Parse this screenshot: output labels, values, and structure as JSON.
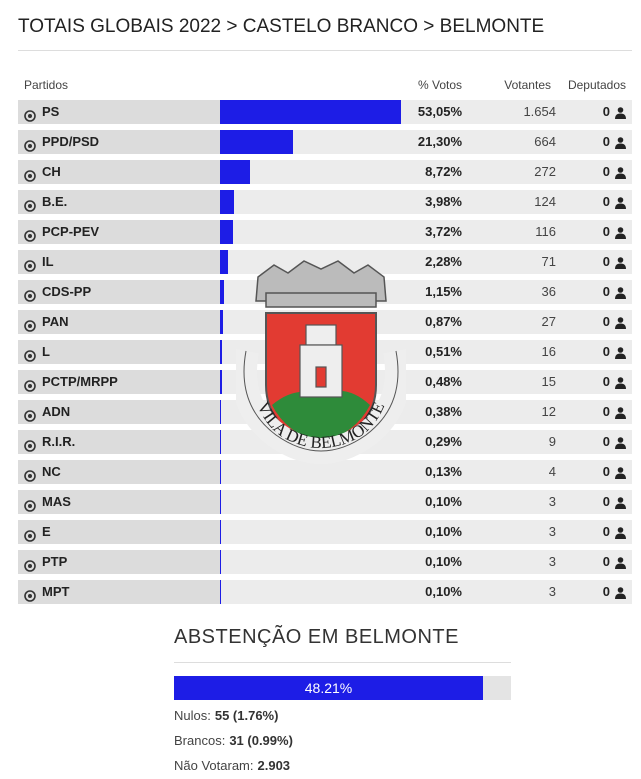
{
  "header": {
    "title": "TOTAIS GLOBAIS 2022 > CASTELO BRANCO > BELMONTE"
  },
  "table": {
    "columns": [
      "Partidos",
      "% Votos",
      "Votantes",
      "Deputados"
    ],
    "rows": [
      {
        "party": "PS",
        "percent": {
          "value": 53.05,
          "label": "53,05%"
        },
        "voters": "1.654",
        "deputies": "0"
      },
      {
        "party": "PPD/PSD",
        "percent": {
          "value": 21.3,
          "label": "21,30%"
        },
        "voters": "664",
        "deputies": "0"
      },
      {
        "party": "CH",
        "percent": {
          "value": 8.72,
          "label": "8,72%"
        },
        "voters": "272",
        "deputies": "0"
      },
      {
        "party": "B.E.",
        "percent": {
          "value": 3.98,
          "label": "3,98%"
        },
        "voters": "124",
        "deputies": "0"
      },
      {
        "party": "PCP-PEV",
        "percent": {
          "value": 3.72,
          "label": "3,72%"
        },
        "voters": "116",
        "deputies": "0"
      },
      {
        "party": "IL",
        "percent": {
          "value": 2.28,
          "label": "2,28%"
        },
        "voters": "71",
        "deputies": "0"
      },
      {
        "party": "CDS-PP",
        "percent": {
          "value": 1.15,
          "label": "1,15%"
        },
        "voters": "36",
        "deputies": "0"
      },
      {
        "party": "PAN",
        "percent": {
          "value": 0.87,
          "label": "0,87%"
        },
        "voters": "27",
        "deputies": "0"
      },
      {
        "party": "L",
        "percent": {
          "value": 0.51,
          "label": "0,51%"
        },
        "voters": "16",
        "deputies": "0"
      },
      {
        "party": "PCTP/MRPP",
        "percent": {
          "value": 0.48,
          "label": "0,48%"
        },
        "voters": "15",
        "deputies": "0"
      },
      {
        "party": "ADN",
        "percent": {
          "value": 0.38,
          "label": "0,38%"
        },
        "voters": "12",
        "deputies": "0"
      },
      {
        "party": "R.I.R.",
        "percent": {
          "value": 0.29,
          "label": "0,29%"
        },
        "voters": "9",
        "deputies": "0"
      },
      {
        "party": "NC",
        "percent": {
          "value": 0.13,
          "label": "0,13%"
        },
        "voters": "4",
        "deputies": "0"
      },
      {
        "party": "MAS",
        "percent": {
          "value": 0.1,
          "label": "0,10%"
        },
        "voters": "3",
        "deputies": "0"
      },
      {
        "party": "E",
        "percent": {
          "value": 0.1,
          "label": "0,10%"
        },
        "voters": "3",
        "deputies": "0"
      },
      {
        "party": "PTP",
        "percent": {
          "value": 0.1,
          "label": "0,10%"
        },
        "voters": "3",
        "deputies": "0"
      },
      {
        "party": "MPT",
        "percent": {
          "value": 0.1,
          "label": "0,10%"
        },
        "voters": "3",
        "deputies": "0"
      }
    ]
  },
  "emblem_text": "VILA DE BELMONTE",
  "abstention": {
    "title": "ABSTENÇÃO EM BELMONTE",
    "percent": {
      "value": 48.21,
      "label": "48.21%"
    },
    "stats": [
      {
        "label": "Nulos:",
        "value": "55 (1.76%)"
      },
      {
        "label": "Brancos:",
        "value": "31 (0.99%)"
      },
      {
        "label": "Não Votaram:",
        "value": "2.903"
      }
    ]
  }
}
